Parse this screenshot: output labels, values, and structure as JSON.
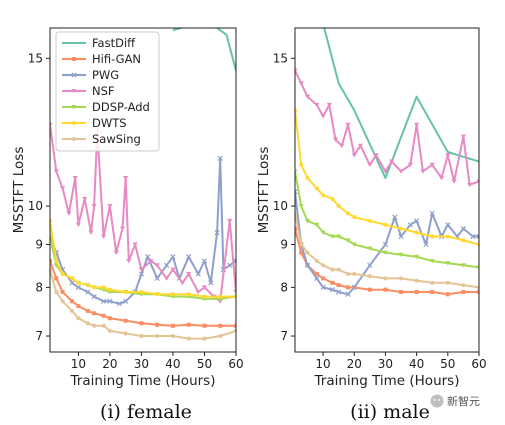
{
  "chart_data": [
    {
      "type": "line",
      "caption": "(i) female",
      "xlabel": "Training Time (Hours)",
      "ylabel": "MSSTFT Loss",
      "xlim": [
        1,
        60
      ],
      "ylim": [
        6.7,
        16.3
      ],
      "y_scale": "log",
      "xticks": [
        10,
        20,
        30,
        40,
        50,
        60
      ],
      "yticks": [
        7,
        8,
        9,
        10,
        15
      ],
      "legend": "top-left",
      "series": [
        {
          "name": "FastDiff",
          "color": "#66c2a5",
          "marker": "none",
          "x": [
            40,
            45,
            50,
            54,
            57,
            60
          ],
          "y": [
            16.2,
            16.4,
            16.5,
            16.3,
            16.0,
            14.5
          ]
        },
        {
          "name": "Hifi-GAN",
          "color": "#fc8d62",
          "marker": "square",
          "x": [
            1,
            3,
            5,
            8,
            10,
            13,
            15,
            18,
            20,
            25,
            30,
            35,
            40,
            45,
            50,
            55,
            60
          ],
          "y": [
            8.6,
            8.2,
            7.9,
            7.7,
            7.6,
            7.5,
            7.45,
            7.4,
            7.35,
            7.3,
            7.25,
            7.22,
            7.2,
            7.22,
            7.2,
            7.2,
            7.2
          ]
        },
        {
          "name": "PWG",
          "color": "#8da0cb",
          "marker": "x",
          "x": [
            1,
            3,
            5,
            8,
            10,
            13,
            15,
            18,
            20,
            23,
            25,
            28,
            30,
            32,
            35,
            38,
            40,
            42,
            45,
            48,
            50,
            52,
            54,
            55,
            56,
            58,
            60
          ],
          "y": [
            9.2,
            8.8,
            8.4,
            8.1,
            8.0,
            7.9,
            7.8,
            7.7,
            7.7,
            7.65,
            7.7,
            7.9,
            8.3,
            8.7,
            8.2,
            8.5,
            8.7,
            8.2,
            8.7,
            8.3,
            8.6,
            8.1,
            9.3,
            11.4,
            8.4,
            8.5,
            8.6
          ]
        },
        {
          "name": "NSF",
          "color": "#e78ac3",
          "marker": "triangle",
          "x": [
            1,
            3,
            5,
            7,
            9,
            10,
            12,
            14,
            15,
            16,
            18,
            20,
            22,
            24,
            25,
            26,
            28,
            30,
            33,
            35,
            38,
            40,
            43,
            45,
            48,
            50,
            53,
            55,
            58,
            60
          ],
          "y": [
            12.5,
            11.0,
            10.5,
            9.8,
            10.8,
            9.5,
            10.2,
            9.3,
            10.0,
            12.3,
            9.2,
            10.0,
            8.8,
            9.4,
            10.8,
            8.6,
            9.0,
            8.4,
            8.6,
            8.5,
            8.2,
            8.4,
            8.1,
            8.3,
            7.9,
            8.0,
            7.8,
            7.7,
            9.6,
            7.9
          ]
        },
        {
          "name": "DDSP-Add",
          "color": "#a6d854",
          "marker": "triangle",
          "x": [
            1,
            3,
            5,
            8,
            10,
            13,
            15,
            18,
            20,
            25,
            30,
            35,
            40,
            45,
            50,
            55,
            60
          ],
          "y": [
            9.2,
            8.5,
            8.3,
            8.2,
            8.1,
            8.05,
            8.0,
            7.95,
            7.9,
            7.9,
            7.85,
            7.85,
            7.8,
            7.8,
            7.75,
            7.75,
            7.8
          ]
        },
        {
          "name": "DWTS",
          "color": "#ffd92f",
          "marker": "circle",
          "x": [
            1,
            3,
            5,
            8,
            10,
            13,
            15,
            18,
            20,
            25,
            30,
            35,
            40,
            45,
            50,
            55,
            60
          ],
          "y": [
            9.6,
            8.6,
            8.3,
            8.2,
            8.1,
            8.05,
            8.0,
            8.0,
            7.95,
            7.9,
            7.9,
            7.85,
            7.85,
            7.85,
            7.8,
            7.8,
            7.8
          ]
        },
        {
          "name": "SawSing",
          "color": "#e5c494",
          "marker": "circle",
          "x": [
            1,
            3,
            5,
            8,
            10,
            13,
            15,
            18,
            20,
            25,
            30,
            35,
            40,
            45,
            50,
            55,
            60
          ],
          "y": [
            8.4,
            7.9,
            7.7,
            7.5,
            7.35,
            7.25,
            7.2,
            7.2,
            7.1,
            7.05,
            7.0,
            7.0,
            7.0,
            6.95,
            6.95,
            7.0,
            7.1
          ]
        }
      ]
    },
    {
      "type": "line",
      "caption": "(ii) male",
      "xlabel": "Training Time (Hours)",
      "ylabel": "MSSTFT Loss",
      "xlim": [
        1,
        60
      ],
      "ylim": [
        6.7,
        16.3
      ],
      "y_scale": "log",
      "xticks": [
        10,
        20,
        30,
        40,
        50,
        60
      ],
      "yticks": [
        7,
        8,
        9,
        10,
        15
      ],
      "legend": "none",
      "series": [
        {
          "name": "FastDiff",
          "color": "#66c2a5",
          "marker": "none",
          "x": [
            10,
            15,
            20,
            30,
            40,
            50,
            60
          ],
          "y": [
            16.5,
            14.0,
            13.0,
            10.8,
            13.5,
            11.6,
            11.3
          ]
        },
        {
          "name": "Hifi-GAN",
          "color": "#fc8d62",
          "marker": "square",
          "x": [
            1,
            3,
            5,
            8,
            10,
            13,
            15,
            18,
            20,
            25,
            30,
            35,
            40,
            45,
            50,
            55,
            60
          ],
          "y": [
            9.4,
            8.8,
            8.5,
            8.3,
            8.2,
            8.1,
            8.05,
            8.0,
            8.0,
            7.95,
            7.95,
            7.9,
            7.9,
            7.9,
            7.85,
            7.9,
            7.9
          ]
        },
        {
          "name": "PWG",
          "color": "#8da0cb",
          "marker": "x",
          "x": [
            1,
            3,
            5,
            8,
            10,
            13,
            15,
            18,
            20,
            25,
            30,
            33,
            35,
            38,
            40,
            43,
            45,
            48,
            50,
            53,
            55,
            58,
            60
          ],
          "y": [
            10.4,
            9.0,
            8.5,
            8.2,
            8.0,
            7.95,
            7.9,
            7.85,
            8.0,
            8.5,
            9.0,
            9.7,
            9.2,
            9.5,
            9.6,
            9.0,
            9.8,
            9.2,
            9.5,
            9.2,
            9.4,
            9.2,
            9.2
          ]
        },
        {
          "name": "NSF",
          "color": "#e78ac3",
          "marker": "triangle",
          "x": [
            1,
            3,
            5,
            8,
            10,
            12,
            14,
            16,
            18,
            20,
            22,
            25,
            27,
            30,
            32,
            35,
            38,
            40,
            42,
            45,
            48,
            50,
            52,
            55,
            57,
            60
          ],
          "y": [
            14.5,
            14.0,
            13.5,
            13.2,
            12.8,
            13.2,
            12.0,
            11.8,
            12.5,
            11.5,
            11.8,
            11.2,
            11.5,
            11.0,
            11.3,
            11.0,
            11.2,
            12.5,
            11.0,
            11.2,
            10.8,
            11.5,
            10.7,
            12.1,
            10.6,
            10.7
          ]
        },
        {
          "name": "DDSP-Add",
          "color": "#a6d854",
          "marker": "triangle",
          "x": [
            1,
            3,
            5,
            8,
            10,
            13,
            15,
            18,
            20,
            25,
            30,
            35,
            40,
            45,
            50,
            55,
            60
          ],
          "y": [
            11.0,
            10.0,
            9.6,
            9.5,
            9.3,
            9.2,
            9.2,
            9.1,
            9.0,
            8.9,
            8.8,
            8.75,
            8.7,
            8.6,
            8.55,
            8.5,
            8.45
          ]
        },
        {
          "name": "DWTS",
          "color": "#ffd92f",
          "marker": "circle",
          "x": [
            1,
            3,
            5,
            8,
            10,
            13,
            15,
            18,
            20,
            25,
            30,
            35,
            40,
            45,
            50,
            55,
            60
          ],
          "y": [
            13.0,
            11.2,
            10.8,
            10.5,
            10.3,
            10.2,
            10.0,
            9.8,
            9.7,
            9.6,
            9.5,
            9.4,
            9.3,
            9.2,
            9.2,
            9.1,
            9.0
          ]
        },
        {
          "name": "SawSing",
          "color": "#e5c494",
          "marker": "circle",
          "x": [
            1,
            3,
            5,
            8,
            10,
            13,
            15,
            18,
            20,
            25,
            30,
            35,
            40,
            45,
            50,
            55,
            60
          ],
          "y": [
            9.8,
            9.0,
            8.8,
            8.6,
            8.5,
            8.4,
            8.4,
            8.3,
            8.3,
            8.25,
            8.2,
            8.2,
            8.15,
            8.1,
            8.1,
            8.05,
            8.0
          ]
        }
      ]
    }
  ],
  "watermark": {
    "text": "新智元",
    "icon": "wechat-icon"
  }
}
